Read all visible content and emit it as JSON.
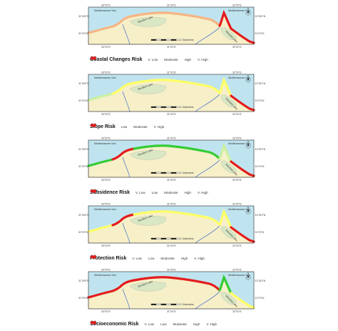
{
  "colors": {
    "sea": "#bfe4f0",
    "land": "#f6efc8",
    "land_dark": "#d9e7c4",
    "lake": "#bfe4f0",
    "v_low": "#33cc33",
    "low": "#c9f0a0",
    "moderate": "#ffff66",
    "high": "#f6b483",
    "v_high": "#e51b1b",
    "river": "#2255cc"
  },
  "map_labels": {
    "sea": "Mediterranean Sea",
    "lake_left": "Burullus Lake",
    "lake_right": "Manzala Lake",
    "scale": "Kilometers",
    "north": "N"
  },
  "ticks": {
    "top": [
      "30°0'0\"E",
      "31°0'0\"E",
      "32°0'0\"E"
    ],
    "bottom": [
      "30°0'0\"E",
      "31°0'0\"E",
      "32°0'0\"E"
    ],
    "left": [
      "31°30'0\"N",
      "31°0'0\"N"
    ],
    "right": [
      "31°30'0\"N",
      "31°0'0\"N"
    ]
  },
  "panels": [
    {
      "title": "Coastal Changes Risk",
      "legend": [
        {
          "label": "V. Low",
          "color_key": "v_low"
        },
        {
          "label": "Moderate",
          "color_key": "moderate"
        },
        {
          "label": "High",
          "color_key": "high"
        },
        {
          "label": "V. High",
          "color_key": "v_high"
        }
      ]
    },
    {
      "title": "Slope Risk",
      "legend": [
        {
          "label": "Low",
          "color_key": "moderate"
        },
        {
          "label": "Moderate",
          "color_key": "v_low"
        },
        {
          "label": "V. High",
          "color_key": "v_high"
        }
      ]
    },
    {
      "title": "Subsidence Risk",
      "legend": [
        {
          "label": "V. Low",
          "color_key": "v_low"
        },
        {
          "label": "Low",
          "color_key": "low"
        },
        {
          "label": "Moderate",
          "color_key": "moderate"
        },
        {
          "label": "High",
          "color_key": "high"
        },
        {
          "label": "V. High",
          "color_key": "v_high"
        }
      ]
    },
    {
      "title": "Protection Risk",
      "legend": [
        {
          "label": "V. Low",
          "color_key": "v_low"
        },
        {
          "label": "Low",
          "color_key": "low"
        },
        {
          "label": "Moderate",
          "color_key": "moderate"
        },
        {
          "label": "High",
          "color_key": "high"
        },
        {
          "label": "V. High",
          "color_key": "v_high"
        }
      ]
    },
    {
      "title": "Socioeconomic Risk",
      "legend": [
        {
          "label": "V. Low",
          "color_key": "v_low"
        },
        {
          "label": "Low",
          "color_key": "low"
        },
        {
          "label": "Moderate",
          "color_key": "moderate"
        },
        {
          "label": "High",
          "color_key": "high"
        },
        {
          "label": "V. High",
          "color_key": "v_high"
        }
      ]
    }
  ],
  "coast_segments": [
    [
      {
        "part": "west",
        "color_key": "high"
      },
      {
        "part": "rosetta",
        "color_key": "high"
      },
      {
        "part": "middle",
        "color_key": "high"
      },
      {
        "part": "damietta",
        "color_key": "v_high"
      },
      {
        "part": "east",
        "color_key": "v_high"
      }
    ],
    [
      {
        "part": "west",
        "color_key": "low"
      },
      {
        "part": "rosetta",
        "color_key": "moderate"
      },
      {
        "part": "middle",
        "color_key": "moderate"
      },
      {
        "part": "damietta",
        "color_key": "moderate"
      },
      {
        "part": "east",
        "color_key": "v_high"
      }
    ],
    [
      {
        "part": "west",
        "color_key": "v_low"
      },
      {
        "part": "rosetta",
        "color_key": "v_high"
      },
      {
        "part": "middle",
        "color_key": "v_low"
      },
      {
        "part": "damietta",
        "color_key": "low"
      },
      {
        "part": "east",
        "color_key": "v_high"
      }
    ],
    [
      {
        "part": "west",
        "color_key": "moderate"
      },
      {
        "part": "rosetta",
        "color_key": "v_high"
      },
      {
        "part": "middle",
        "color_key": "moderate"
      },
      {
        "part": "damietta",
        "color_key": "moderate"
      },
      {
        "part": "east",
        "color_key": "v_high"
      }
    ],
    [
      {
        "part": "west",
        "color_key": "v_high"
      },
      {
        "part": "rosetta",
        "color_key": "v_high"
      },
      {
        "part": "middle",
        "color_key": "v_high"
      },
      {
        "part": "damietta",
        "color_key": "v_low"
      },
      {
        "part": "east",
        "color_key": "moderate"
      }
    ]
  ]
}
